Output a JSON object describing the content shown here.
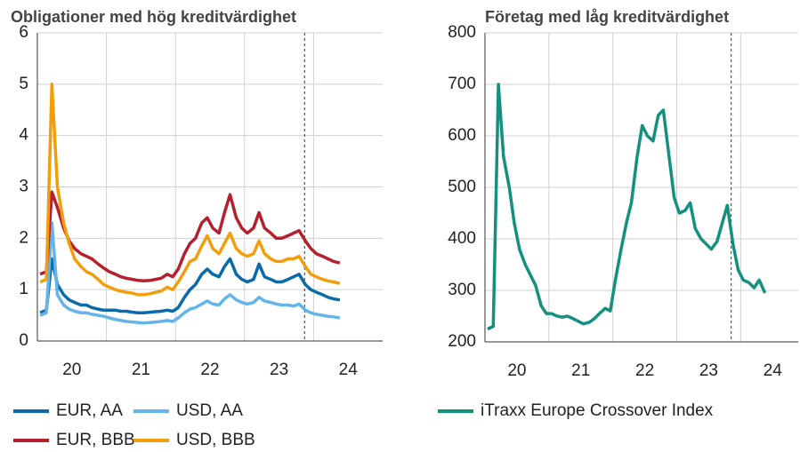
{
  "chart_data": [
    {
      "type": "line",
      "title": "Obligationer med hög kreditvärdighet",
      "x": [
        20.04,
        20.13,
        20.21,
        20.29,
        20.38,
        20.46,
        20.54,
        20.63,
        20.71,
        20.79,
        20.88,
        20.96,
        21.04,
        21.13,
        21.21,
        21.29,
        21.38,
        21.46,
        21.54,
        21.63,
        21.71,
        21.79,
        21.88,
        21.96,
        22.04,
        22.13,
        22.21,
        22.29,
        22.38,
        22.46,
        22.54,
        22.63,
        22.71,
        22.79,
        22.88,
        22.96,
        23.04,
        23.13,
        23.21,
        23.29,
        23.38,
        23.46,
        23.54,
        23.63,
        23.71,
        23.79,
        23.88,
        23.96,
        24.04,
        24.13,
        24.21,
        24.29,
        24.38
      ],
      "series": [
        {
          "name": "EUR, AA",
          "color": "#0b6aa8",
          "values": [
            0.55,
            0.6,
            1.6,
            1.1,
            0.9,
            0.8,
            0.75,
            0.7,
            0.7,
            0.65,
            0.62,
            0.6,
            0.6,
            0.6,
            0.58,
            0.58,
            0.56,
            0.55,
            0.55,
            0.56,
            0.57,
            0.58,
            0.6,
            0.58,
            0.65,
            0.85,
            1.0,
            1.1,
            1.3,
            1.4,
            1.3,
            1.25,
            1.45,
            1.6,
            1.3,
            1.2,
            1.15,
            1.2,
            1.5,
            1.25,
            1.2,
            1.15,
            1.15,
            1.2,
            1.25,
            1.3,
            1.1,
            1.0,
            0.95,
            0.9,
            0.85,
            0.82,
            0.8
          ]
        },
        {
          "name": "USD, AA",
          "color": "#62b4ea",
          "values": [
            0.5,
            0.55,
            2.3,
            0.9,
            0.7,
            0.62,
            0.58,
            0.55,
            0.55,
            0.52,
            0.5,
            0.48,
            0.45,
            0.42,
            0.4,
            0.38,
            0.37,
            0.36,
            0.35,
            0.36,
            0.37,
            0.38,
            0.4,
            0.38,
            0.45,
            0.55,
            0.62,
            0.65,
            0.72,
            0.78,
            0.72,
            0.7,
            0.82,
            0.9,
            0.8,
            0.75,
            0.72,
            0.75,
            0.85,
            0.78,
            0.75,
            0.72,
            0.7,
            0.7,
            0.68,
            0.72,
            0.6,
            0.55,
            0.52,
            0.5,
            0.48,
            0.47,
            0.45
          ]
        },
        {
          "name": "EUR, BBB",
          "color": "#b5202e",
          "values": [
            1.3,
            1.35,
            2.9,
            2.6,
            2.2,
            1.95,
            1.8,
            1.7,
            1.65,
            1.6,
            1.5,
            1.42,
            1.35,
            1.3,
            1.25,
            1.22,
            1.2,
            1.18,
            1.17,
            1.18,
            1.2,
            1.22,
            1.3,
            1.25,
            1.4,
            1.7,
            1.9,
            2.0,
            2.3,
            2.4,
            2.2,
            2.1,
            2.5,
            2.85,
            2.4,
            2.2,
            2.1,
            2.2,
            2.5,
            2.2,
            2.1,
            2.0,
            2.0,
            2.05,
            2.1,
            2.15,
            1.95,
            1.8,
            1.7,
            1.65,
            1.6,
            1.55,
            1.52
          ]
        },
        {
          "name": "USD, BBB",
          "color": "#f29e0c",
          "values": [
            1.15,
            1.2,
            5.0,
            3.0,
            2.3,
            1.9,
            1.6,
            1.45,
            1.35,
            1.3,
            1.2,
            1.1,
            1.05,
            1.0,
            0.97,
            0.95,
            0.93,
            0.9,
            0.9,
            0.92,
            0.95,
            0.97,
            1.05,
            1.0,
            1.15,
            1.35,
            1.55,
            1.6,
            1.85,
            2.05,
            1.8,
            1.7,
            1.9,
            2.1,
            1.8,
            1.7,
            1.65,
            1.7,
            1.95,
            1.7,
            1.6,
            1.55,
            1.55,
            1.6,
            1.6,
            1.65,
            1.45,
            1.3,
            1.25,
            1.2,
            1.17,
            1.15,
            1.12
          ]
        }
      ],
      "xlim": [
        20,
        25
      ],
      "xticks": [
        {
          "value": 20.5,
          "label": "20"
        },
        {
          "value": 21.5,
          "label": "21"
        },
        {
          "value": 22.5,
          "label": "22"
        },
        {
          "value": 23.5,
          "label": "23"
        },
        {
          "value": 24.5,
          "label": "24"
        }
      ],
      "xgrid": [
        21,
        22,
        23,
        24
      ],
      "vline": 23.87,
      "ylim": [
        0,
        6
      ],
      "yticks": [
        0,
        1,
        2,
        3,
        4,
        5,
        6
      ],
      "grid": true
    },
    {
      "type": "line",
      "title": "Företag med låg kreditvärdighet",
      "x": [
        20.04,
        20.13,
        20.21,
        20.29,
        20.38,
        20.46,
        20.54,
        20.63,
        20.71,
        20.79,
        20.88,
        20.96,
        21.04,
        21.13,
        21.21,
        21.29,
        21.38,
        21.46,
        21.54,
        21.63,
        21.71,
        21.79,
        21.88,
        21.96,
        22.04,
        22.13,
        22.21,
        22.29,
        22.38,
        22.46,
        22.54,
        22.63,
        22.71,
        22.79,
        22.88,
        22.96,
        23.04,
        23.13,
        23.21,
        23.29,
        23.38,
        23.46,
        23.54,
        23.63,
        23.71,
        23.79,
        23.88,
        23.96,
        24.04,
        24.13,
        24.21,
        24.29,
        24.38
      ],
      "series": [
        {
          "name": "iTraxx Europe Crossover Index",
          "color": "#13917e",
          "values": [
            225,
            230,
            700,
            560,
            500,
            430,
            380,
            350,
            330,
            310,
            270,
            255,
            255,
            250,
            248,
            250,
            245,
            240,
            235,
            238,
            245,
            255,
            265,
            260,
            320,
            380,
            430,
            470,
            560,
            620,
            600,
            590,
            640,
            650,
            560,
            480,
            450,
            455,
            470,
            420,
            400,
            390,
            380,
            395,
            430,
            465,
            390,
            340,
            320,
            315,
            305,
            320,
            295
          ]
        }
      ],
      "xlim": [
        20,
        24.9
      ],
      "xticks": [
        {
          "value": 20.5,
          "label": "20"
        },
        {
          "value": 21.5,
          "label": "21"
        },
        {
          "value": 22.5,
          "label": "22"
        },
        {
          "value": 23.5,
          "label": "23"
        },
        {
          "value": 24.5,
          "label": "24"
        }
      ],
      "xgrid": [
        21,
        22,
        23,
        24
      ],
      "vline": 23.85,
      "ylim": [
        200,
        800
      ],
      "yticks": [
        200,
        300,
        400,
        500,
        600,
        700,
        800
      ],
      "grid": true
    }
  ]
}
